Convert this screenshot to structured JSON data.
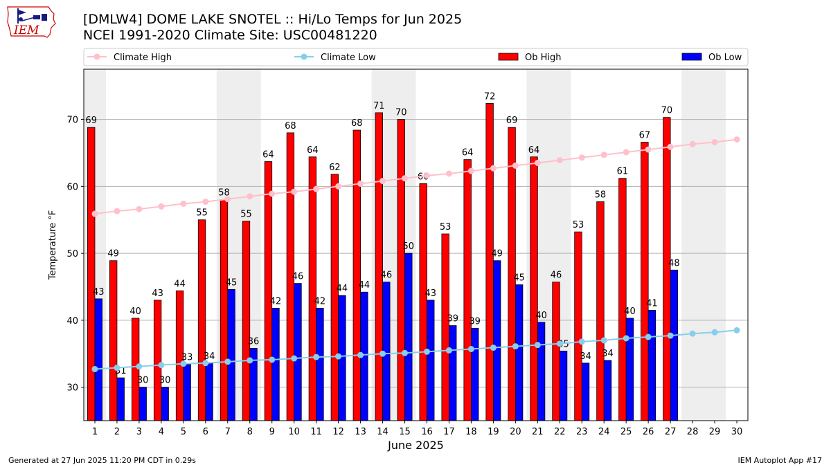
{
  "header": {
    "title_line1": "[DMLW4] DOME LAKE SNOTEL :: Hi/Lo Temps for Jun 2025",
    "title_line2": "NCEI 1991-2020 Climate Site: USC00481220"
  },
  "logo": {
    "text": "IEM",
    "accent_color": "#cc0000",
    "icon": "iem-logo-icon"
  },
  "footer": {
    "generated": "Generated at 27 Jun 2025 11:20 PM CDT in 0.29s",
    "app": "IEM Autoplot App #17"
  },
  "colors": {
    "ob_high": "#ff0000",
    "ob_low": "#0000ff",
    "climate_high": "#ffc0cb",
    "climate_low": "#87ceeb",
    "weekend_shade": "#eeeeee",
    "grid": "#b0b0b0"
  },
  "chart_data": {
    "type": "bar",
    "xlabel": "June 2025",
    "ylabel": "Temperature °F",
    "ylim": [
      25,
      77.5
    ],
    "yticks": [
      30,
      40,
      50,
      60,
      70
    ],
    "grid": "horizontal",
    "legend_position": "top",
    "categories": [
      1,
      2,
      3,
      4,
      5,
      6,
      7,
      8,
      9,
      10,
      11,
      12,
      13,
      14,
      15,
      16,
      17,
      18,
      19,
      20,
      21,
      22,
      23,
      24,
      25,
      26,
      27,
      28,
      29,
      30
    ],
    "shaded_days": [
      1,
      7,
      8,
      14,
      15,
      21,
      22,
      28,
      29
    ],
    "series": [
      {
        "name": "Ob High",
        "kind": "bar",
        "values": [
          69,
          49,
          40,
          43,
          44,
          55,
          58,
          55,
          64,
          68,
          64,
          62,
          68,
          71,
          70,
          60,
          53,
          64,
          72,
          69,
          64,
          46,
          53,
          58,
          61,
          67,
          70,
          null,
          null,
          null
        ],
        "plot_values": [
          68.8,
          48.9,
          40.3,
          43.0,
          44.4,
          55.0,
          58.0,
          54.8,
          63.7,
          68.0,
          64.4,
          61.8,
          68.4,
          71.0,
          70.0,
          60.4,
          52.9,
          64.0,
          72.4,
          68.8,
          64.4,
          45.7,
          53.2,
          57.7,
          61.2,
          66.6,
          70.3,
          null,
          null,
          null
        ]
      },
      {
        "name": "Ob Low",
        "kind": "bar",
        "values": [
          43,
          31,
          30,
          30,
          33,
          34,
          45,
          36,
          42,
          46,
          42,
          44,
          44,
          46,
          50,
          43,
          39,
          39,
          49,
          45,
          40,
          35,
          34,
          34,
          40,
          41,
          48,
          null,
          null,
          null
        ],
        "plot_values": [
          43.2,
          31.4,
          30.0,
          30.0,
          33.4,
          33.6,
          44.6,
          35.8,
          41.8,
          45.5,
          41.8,
          43.7,
          44.2,
          45.7,
          50.0,
          43.0,
          39.2,
          38.8,
          48.9,
          45.3,
          39.7,
          35.4,
          33.6,
          34.0,
          40.3,
          41.5,
          47.5,
          null,
          null,
          null
        ]
      },
      {
        "name": "Climate High",
        "kind": "line",
        "values": [
          55.9,
          56.3,
          56.6,
          57.0,
          57.4,
          57.7,
          58.1,
          58.5,
          58.9,
          59.2,
          59.6,
          60.0,
          60.4,
          60.8,
          61.2,
          61.6,
          61.9,
          62.3,
          62.7,
          63.1,
          63.5,
          63.9,
          64.3,
          64.7,
          65.1,
          65.5,
          65.9,
          66.3,
          66.6,
          67.0
        ]
      },
      {
        "name": "Climate Low",
        "kind": "line",
        "values": [
          32.7,
          32.9,
          33.1,
          33.3,
          33.5,
          33.6,
          33.8,
          34.0,
          34.1,
          34.3,
          34.5,
          34.6,
          34.8,
          35.0,
          35.1,
          35.3,
          35.5,
          35.7,
          35.9,
          36.1,
          36.3,
          36.5,
          36.8,
          37.0,
          37.3,
          37.5,
          37.7,
          38.0,
          38.2,
          38.5
        ]
      }
    ]
  }
}
